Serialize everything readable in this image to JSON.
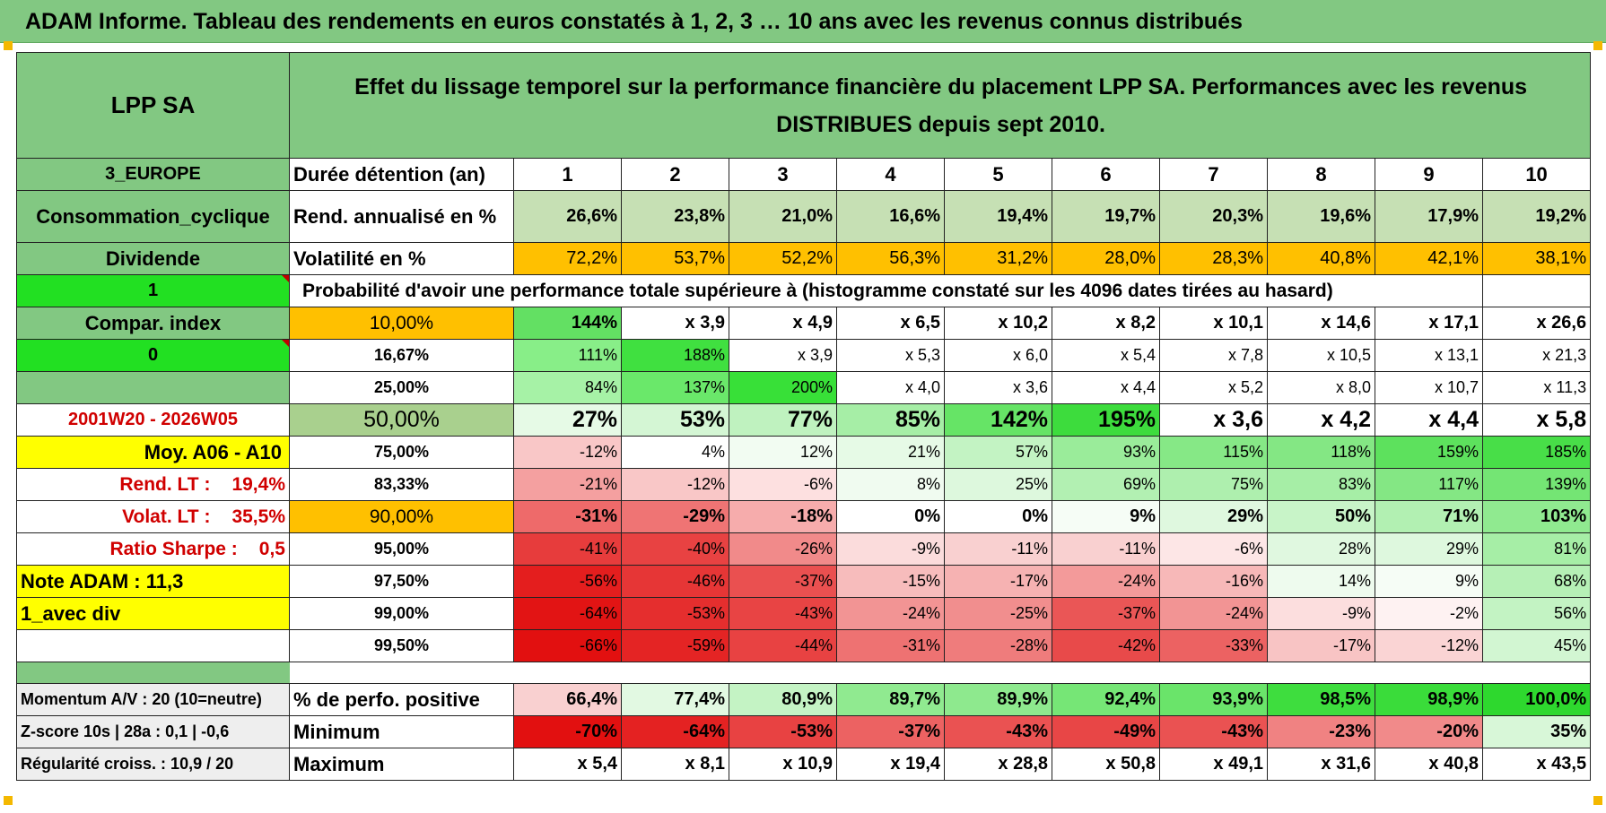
{
  "title": "ADAM Informe. Tableau des rendements en euros constatés à 1, 2, 3 … 10 ans avec les revenus connus distribués",
  "colors": {
    "header_green": "#82c882",
    "bright_green": "#22e022",
    "yellow": "#ffff00",
    "orange": "#ffc000",
    "red_text": "#d00000"
  },
  "header": {
    "fund_name": "LPP SA",
    "description": "Effet du lissage temporel sur la performance financière du placement LPP SA. Performances avec les revenus DISTRIBUES depuis sept 2010."
  },
  "durations_label": "Durée détention (an)",
  "durations": [
    "1",
    "2",
    "3",
    "4",
    "5",
    "6",
    "7",
    "8",
    "9",
    "10"
  ],
  "left_labels": {
    "zone": "3_EUROPE",
    "sector": "Consommation_cyclique",
    "distribution": "Dividende",
    "flag_1": "1",
    "compar_index": "Compar. index",
    "flag_0": "0",
    "period": "2001W20 - 2026W05",
    "average": "Moy. A06 - A10",
    "rend_lt_label": "Rend. LT :",
    "rend_lt_value": "19,4%",
    "volat_lt_label": "Volat. LT :",
    "volat_lt_value": "35,5%",
    "sharpe_label": "Ratio Sharpe :",
    "sharpe_value": "0,5",
    "note": "Note ADAM : 11,3",
    "div_mode": "1_avec div"
  },
  "annual_return": {
    "label": "Rend. annualisé en %",
    "values": [
      "26,6%",
      "23,8%",
      "21,0%",
      "16,6%",
      "19,4%",
      "19,7%",
      "20,3%",
      "19,6%",
      "17,9%",
      "19,2%"
    ]
  },
  "volatility": {
    "label": "Volatilité en %",
    "values": [
      "72,2%",
      "53,7%",
      "52,2%",
      "56,3%",
      "31,2%",
      "28,0%",
      "28,3%",
      "40,8%",
      "42,1%",
      "38,1%"
    ]
  },
  "probability_caption": "Probabilité d'avoir une performance totale supérieure à (histogramme constaté sur les 4096 dates tirées au hasard)",
  "probability_rows": [
    {
      "pct": "10,00%",
      "values": [
        "144%",
        "x 3,9",
        "x 4,9",
        "x 6,5",
        "x 10,2",
        "x 8,2",
        "x 10,1",
        "x 14,6",
        "x 17,1",
        "x 26,6"
      ]
    },
    {
      "pct": "16,67%",
      "values": [
        "111%",
        "188%",
        "x 3,9",
        "x 5,3",
        "x 6,0",
        "x 5,4",
        "x 7,8",
        "x 10,5",
        "x 13,1",
        "x 21,3"
      ]
    },
    {
      "pct": "25,00%",
      "values": [
        "84%",
        "137%",
        "200%",
        "x 4,0",
        "x 3,6",
        "x 4,4",
        "x 5,2",
        "x 8,0",
        "x 10,7",
        "x 11,3"
      ]
    },
    {
      "pct": "50,00%",
      "values": [
        "27%",
        "53%",
        "77%",
        "85%",
        "142%",
        "195%",
        "x 3,6",
        "x 4,2",
        "x 4,4",
        "x 5,8"
      ]
    },
    {
      "pct": "75,00%",
      "values": [
        "-12%",
        "4%",
        "12%",
        "21%",
        "57%",
        "93%",
        "115%",
        "118%",
        "159%",
        "185%"
      ]
    },
    {
      "pct": "83,33%",
      "values": [
        "-21%",
        "-12%",
        "-6%",
        "8%",
        "25%",
        "69%",
        "75%",
        "83%",
        "117%",
        "139%"
      ]
    },
    {
      "pct": "90,00%",
      "values": [
        "-31%",
        "-29%",
        "-18%",
        "0%",
        "0%",
        "9%",
        "29%",
        "50%",
        "71%",
        "103%"
      ]
    },
    {
      "pct": "95,00%",
      "values": [
        "-41%",
        "-40%",
        "-26%",
        "-9%",
        "-11%",
        "-11%",
        "-6%",
        "28%",
        "29%",
        "81%"
      ]
    },
    {
      "pct": "97,50%",
      "values": [
        "-56%",
        "-46%",
        "-37%",
        "-15%",
        "-17%",
        "-24%",
        "-16%",
        "14%",
        "9%",
        "68%"
      ]
    },
    {
      "pct": "99,00%",
      "values": [
        "-64%",
        "-53%",
        "-43%",
        "-24%",
        "-25%",
        "-37%",
        "-24%",
        "-9%",
        "-2%",
        "56%"
      ]
    },
    {
      "pct": "99,50%",
      "values": [
        "-66%",
        "-59%",
        "-44%",
        "-31%",
        "-28%",
        "-42%",
        "-33%",
        "-17%",
        "-12%",
        "45%"
      ]
    }
  ],
  "bottom": {
    "momentum": "Momentum A/V : 20 (10=neutre)",
    "zscore": "Z-score 10s | 28a : 0,1 | -0,6",
    "regularity": "Régularité croiss. : 10,9 / 20",
    "positive": {
      "label": "% de perfo. positive",
      "values": [
        "66,4%",
        "77,4%",
        "80,9%",
        "89,7%",
        "89,9%",
        "92,4%",
        "93,9%",
        "98,5%",
        "98,9%",
        "100,0%"
      ]
    },
    "minimum": {
      "label": "Minimum",
      "values": [
        "-70%",
        "-64%",
        "-53%",
        "-37%",
        "-43%",
        "-49%",
        "-43%",
        "-23%",
        "-20%",
        "35%"
      ]
    },
    "maximum": {
      "label": "Maximum",
      "values": [
        "x 5,4",
        "x 8,1",
        "x 10,9",
        "x 19,4",
        "x 28,8",
        "x 50,8",
        "x 49,1",
        "x 31,6",
        "x 40,8",
        "x 43,5"
      ]
    }
  }
}
